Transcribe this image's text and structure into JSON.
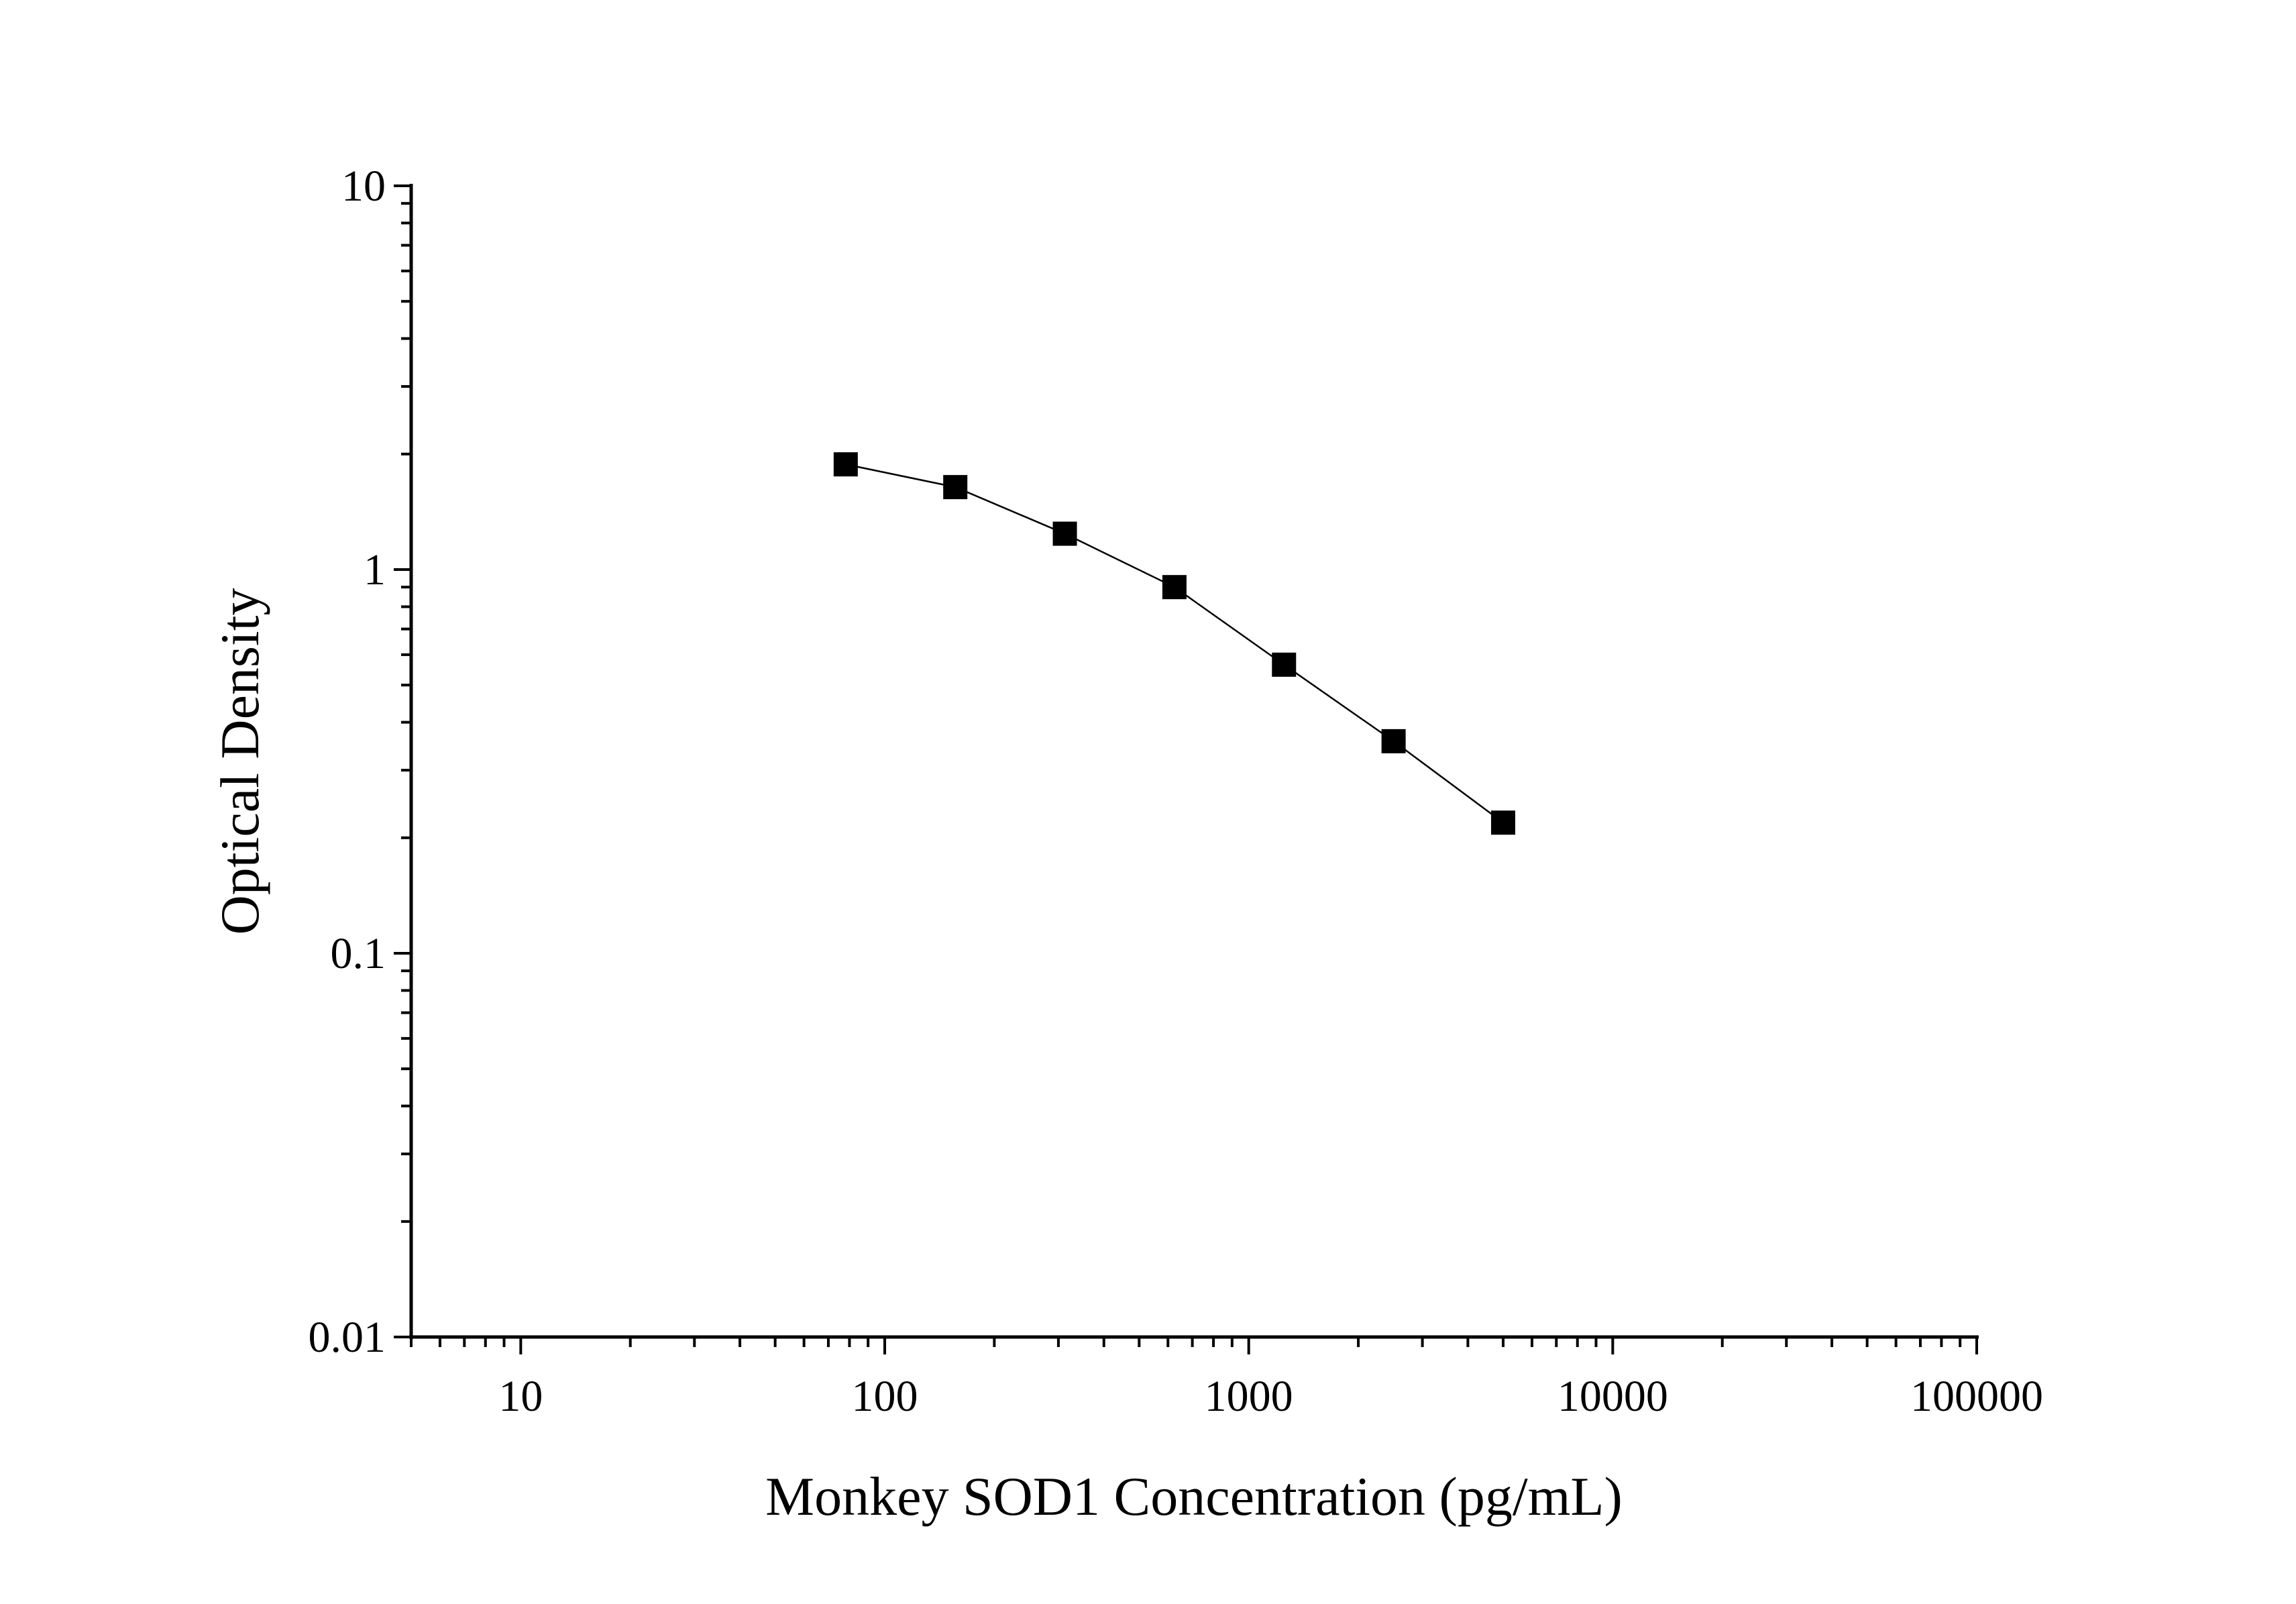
{
  "chart_data": {
    "type": "line",
    "title": "",
    "xlabel": "Monkey SOD1 Concentration (pg/mL)",
    "ylabel": "Optical Density",
    "xscale": "log",
    "yscale": "log",
    "xlim": [
      5,
      100000
    ],
    "ylim": [
      0.01,
      10
    ],
    "grid": false,
    "legend": "none",
    "x_tick_labels": [
      "10",
      "100",
      "1000",
      "10000",
      "100000"
    ],
    "y_tick_labels": [
      "0.01",
      "0.1",
      "1",
      "10"
    ],
    "marker": "square",
    "color": "#000000",
    "series": [
      {
        "x": [
          78.125,
          156.25,
          312.5,
          625,
          1250,
          2500,
          5000
        ],
        "y": [
          1.88,
          1.64,
          1.24,
          0.9,
          0.565,
          0.357,
          0.219
        ]
      }
    ]
  }
}
